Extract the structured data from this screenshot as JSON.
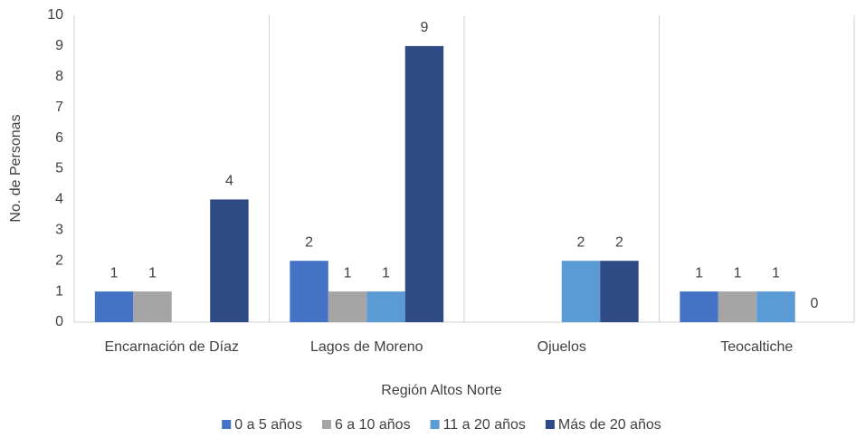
{
  "chart_data": {
    "type": "bar",
    "categories": [
      "Encarnación de Díaz",
      "Lagos de Moreno",
      "Ojuelos",
      "Teocaltiche"
    ],
    "series": [
      {
        "name": "0 a 5 años",
        "color": "#4472c4",
        "values": [
          1,
          2,
          null,
          1
        ]
      },
      {
        "name": "6 a 10 años",
        "color": "#a5a5a5",
        "values": [
          1,
          1,
          null,
          1
        ]
      },
      {
        "name": "11 a 20 años",
        "color": "#5b9bd5",
        "values": [
          null,
          1,
          2,
          1
        ]
      },
      {
        "name": "Más de 20 años",
        "color": "#2f4b86",
        "values": [
          4,
          9,
          2,
          0
        ]
      }
    ],
    "ylabel": "No. de Personas",
    "xlabel": "Región Altos Norte",
    "ylim": [
      0,
      10
    ],
    "yticks": [
      0,
      1,
      2,
      3,
      4,
      5,
      6,
      7,
      8,
      9,
      10
    ],
    "legend": "bottom"
  }
}
